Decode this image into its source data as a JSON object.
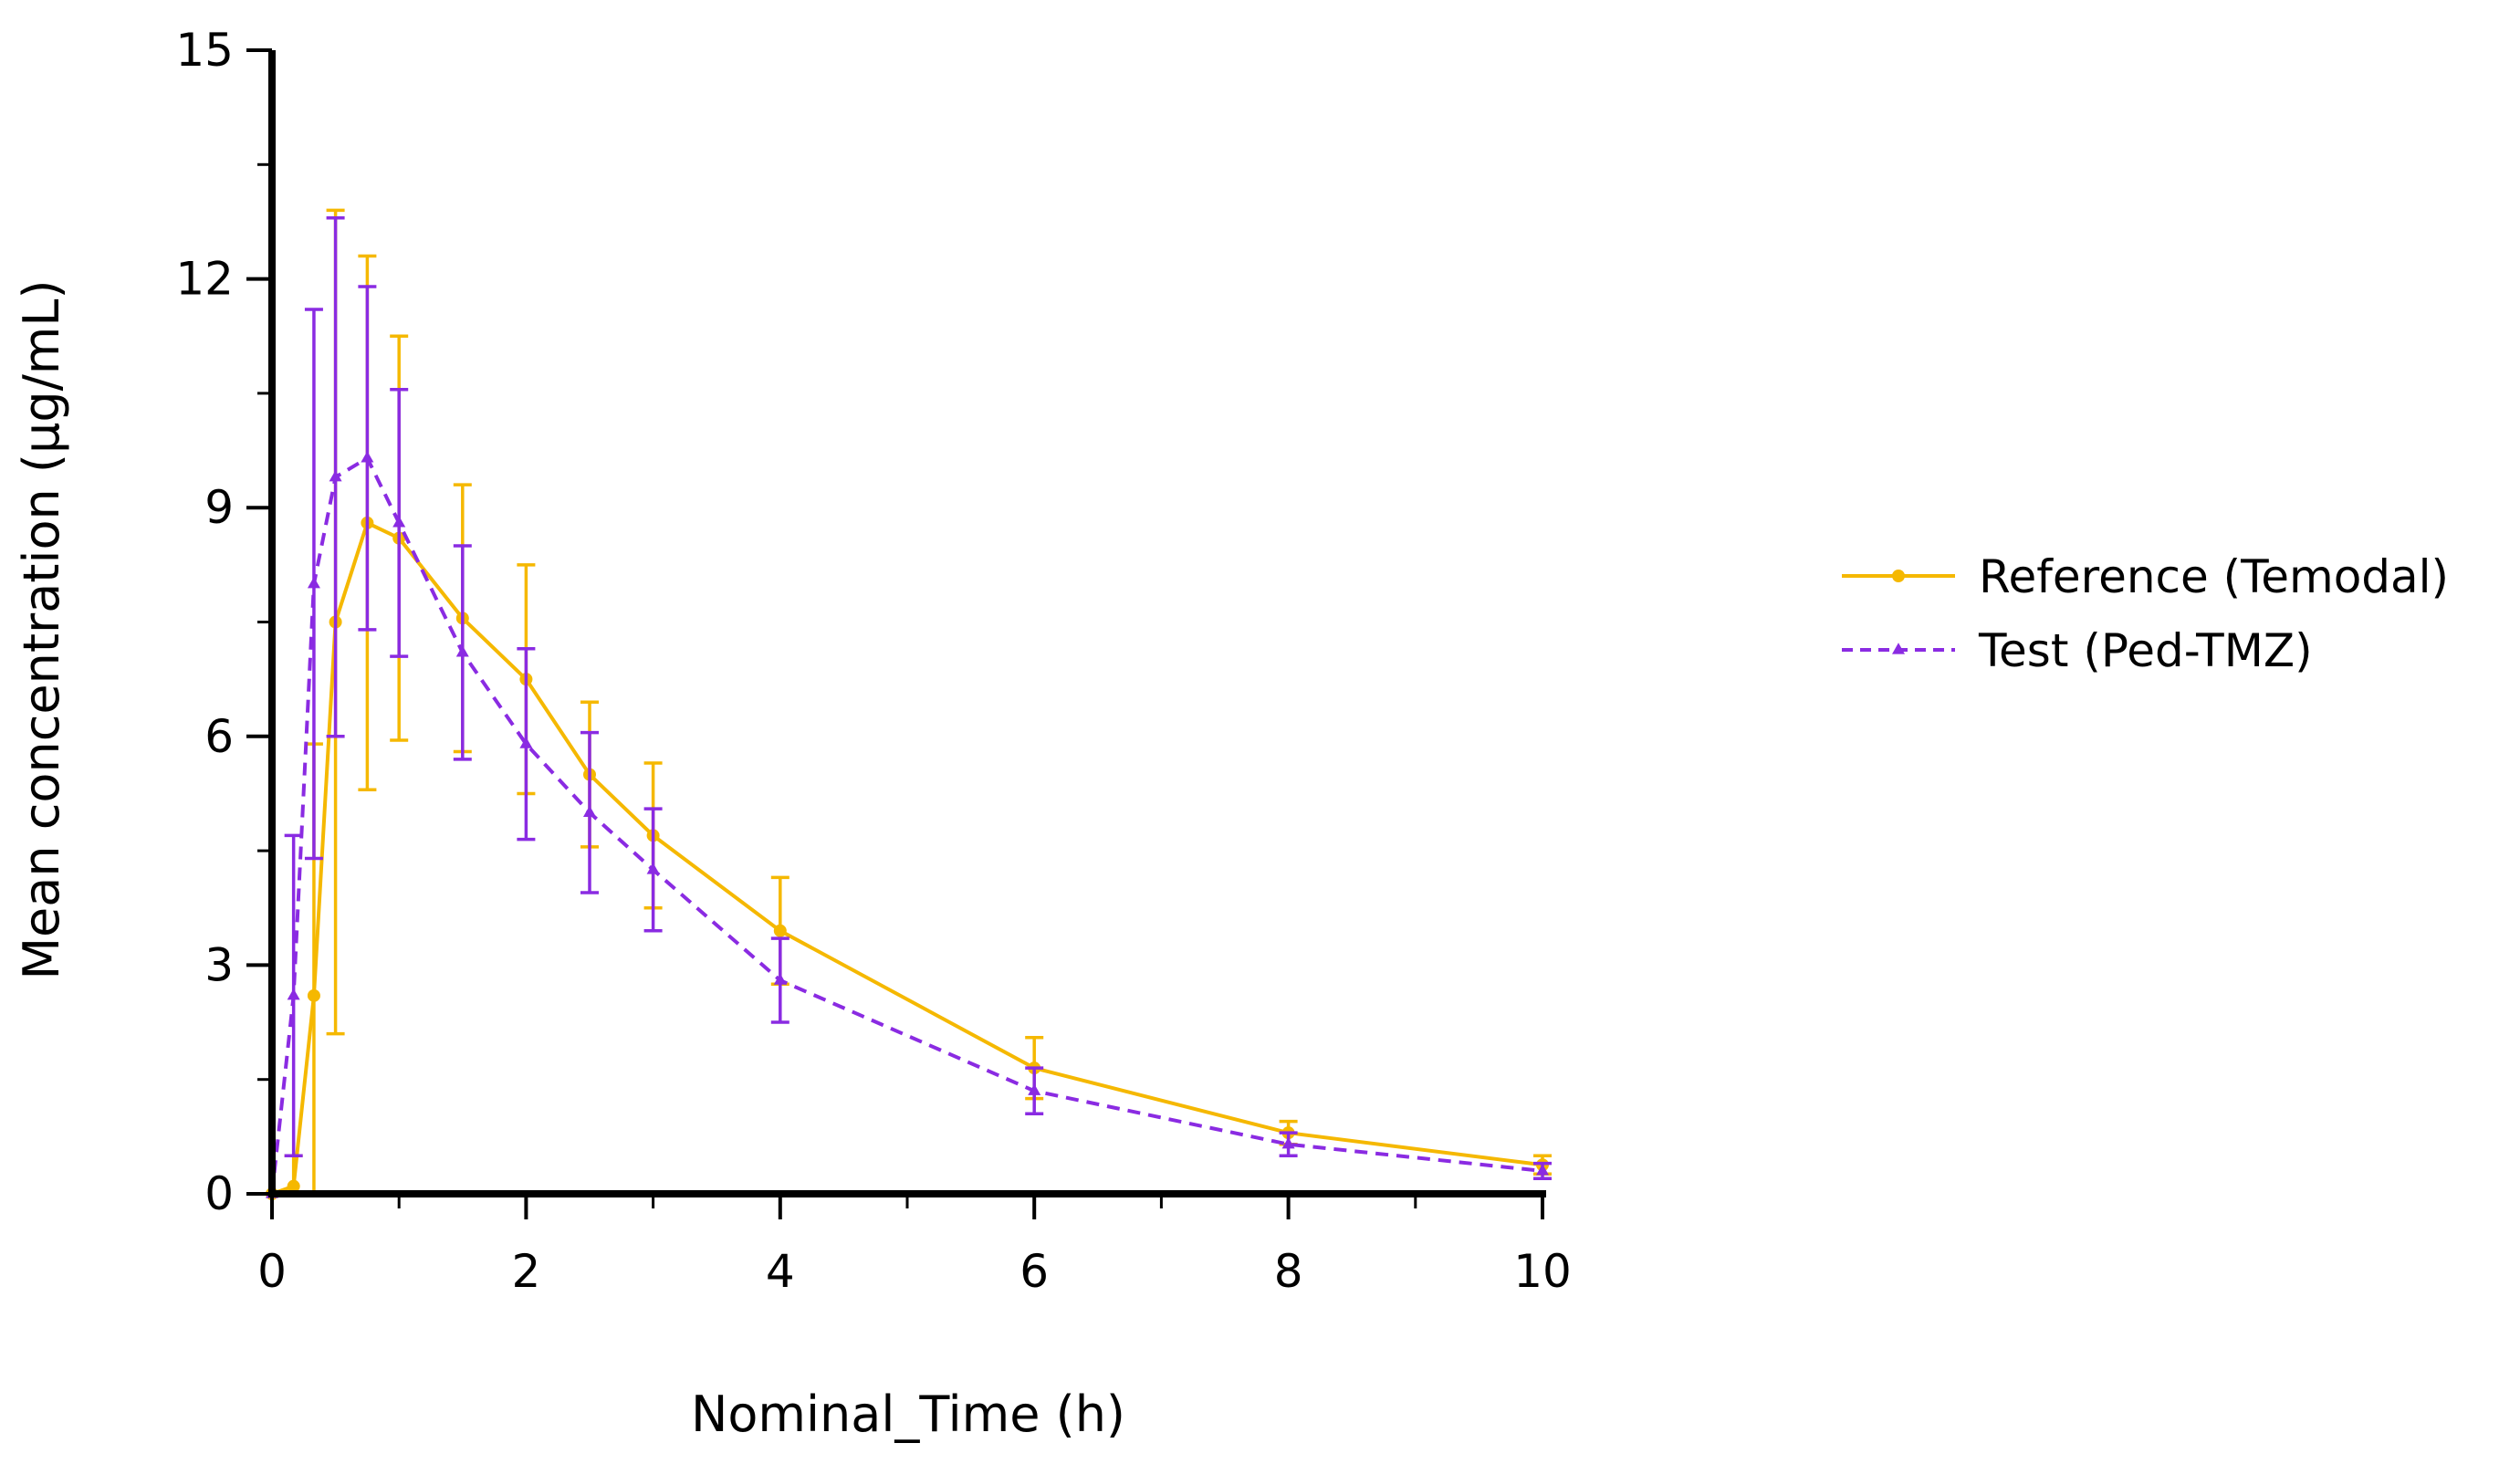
{
  "chart_data": {
    "type": "line",
    "title": "",
    "xlabel": "Nominal_Time (h)",
    "ylabel": "Mean concentration (μg/mL)",
    "xlim": [
      0,
      10
    ],
    "ylim": [
      0,
      15
    ],
    "xticks": [
      0,
      2,
      4,
      6,
      8,
      10
    ],
    "yticks": [
      0,
      3,
      6,
      9,
      12,
      15
    ],
    "grid": false,
    "legend_position": "right",
    "series": [
      {
        "name": "Reference (Temodal)",
        "color": "#F5B800",
        "line_style": "solid",
        "marker": "circle",
        "x": [
          0,
          0.17,
          0.33,
          0.5,
          0.75,
          1,
          1.5,
          2,
          2.5,
          3,
          4,
          6,
          8,
          10
        ],
        "y": [
          0,
          0.1,
          2.6,
          7.5,
          8.8,
          8.6,
          7.55,
          6.75,
          5.5,
          4.7,
          3.45,
          1.65,
          0.8,
          0.38
        ],
        "err": [
          0,
          0.4,
          3.3,
          5.4,
          3.5,
          2.65,
          1.75,
          1.5,
          0.95,
          0.95,
          0.7,
          0.4,
          0.15,
          0.12
        ]
      },
      {
        "name": "Test (Ped-TMZ)",
        "color": "#8A2BE2",
        "line_style": "dashed",
        "marker": "triangle",
        "x": [
          0,
          0.17,
          0.33,
          0.5,
          0.75,
          1,
          1.5,
          2,
          2.5,
          3,
          4,
          6,
          8,
          10
        ],
        "y": [
          0,
          2.6,
          8.0,
          9.4,
          9.65,
          8.8,
          7.1,
          5.9,
          5.0,
          4.25,
          2.8,
          1.35,
          0.65,
          0.3
        ],
        "err": [
          0,
          2.1,
          3.6,
          3.4,
          2.25,
          1.75,
          1.4,
          1.25,
          1.05,
          0.8,
          0.55,
          0.3,
          0.15,
          0.1
        ]
      }
    ]
  }
}
